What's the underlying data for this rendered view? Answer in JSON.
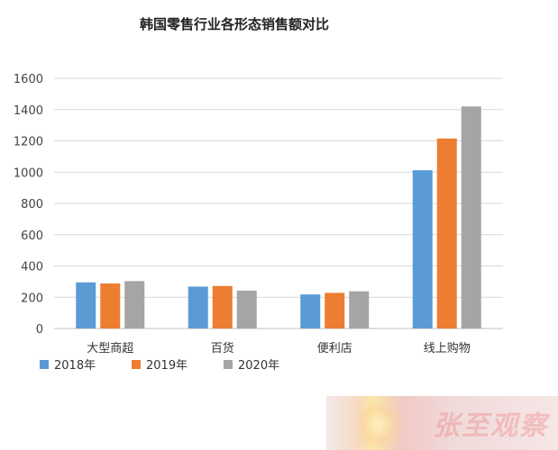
{
  "chart_data": {
    "type": "bar",
    "title": "韩国零售行业各形态销售额对比",
    "categories": [
      "大型商超",
      "百货",
      "便利店",
      "线上购物"
    ],
    "series": [
      {
        "name": "2018年",
        "color": "#5b9bd5",
        "values": [
          295,
          268,
          218,
          1012
        ]
      },
      {
        "name": "2019年",
        "color": "#ed7d31",
        "values": [
          288,
          272,
          228,
          1215
        ]
      },
      {
        "name": "2020年",
        "color": "#a5a5a5",
        "values": [
          303,
          242,
          238,
          1420
        ]
      }
    ],
    "ylim": [
      0,
      1600
    ],
    "yticks": [
      0,
      200,
      400,
      600,
      800,
      1000,
      1200,
      1400,
      1600
    ],
    "xlabel": "",
    "ylabel": "",
    "grid": true,
    "legend": "bottom-left"
  },
  "watermark": {
    "text": "张至观察"
  }
}
